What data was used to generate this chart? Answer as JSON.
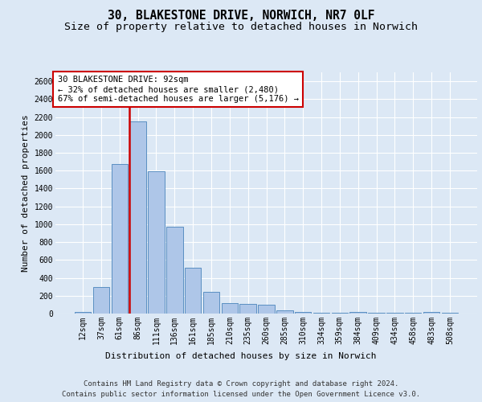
{
  "title_line1": "30, BLAKESTONE DRIVE, NORWICH, NR7 0LF",
  "title_line2": "Size of property relative to detached houses in Norwich",
  "xlabel": "Distribution of detached houses by size in Norwich",
  "ylabel": "Number of detached properties",
  "footer_line1": "Contains HM Land Registry data © Crown copyright and database right 2024.",
  "footer_line2": "Contains public sector information licensed under the Open Government Licence v3.0.",
  "annotation_line1": "30 BLAKESTONE DRIVE: 92sqm",
  "annotation_line2": "← 32% of detached houses are smaller (2,480)",
  "annotation_line3": "67% of semi-detached houses are larger (5,176) →",
  "bar_labels": [
    "12sqm",
    "37sqm",
    "61sqm",
    "86sqm",
    "111sqm",
    "136sqm",
    "161sqm",
    "185sqm",
    "210sqm",
    "235sqm",
    "260sqm",
    "285sqm",
    "310sqm",
    "334sqm",
    "359sqm",
    "384sqm",
    "409sqm",
    "434sqm",
    "458sqm",
    "483sqm",
    "508sqm"
  ],
  "bar_values": [
    20,
    300,
    1670,
    2150,
    1590,
    970,
    510,
    245,
    120,
    110,
    95,
    40,
    15,
    10,
    5,
    20,
    5,
    5,
    5,
    20,
    5
  ],
  "bar_color": "#aec6e8",
  "bar_edge_color": "#5a8fc2",
  "vline_index": 3,
  "vline_color": "#cc0000",
  "annotation_box_color": "#cc0000",
  "ylim": [
    0,
    2700
  ],
  "yticks": [
    0,
    200,
    400,
    600,
    800,
    1000,
    1200,
    1400,
    1600,
    1800,
    2000,
    2200,
    2400,
    2600
  ],
  "background_color": "#dce8f5",
  "plot_bg_color": "#dce8f5",
  "grid_color": "#ffffff",
  "title_fontsize": 10.5,
  "subtitle_fontsize": 9.5,
  "axis_label_fontsize": 8,
  "tick_fontsize": 7,
  "annotation_fontsize": 7.5,
  "footer_fontsize": 6.5
}
